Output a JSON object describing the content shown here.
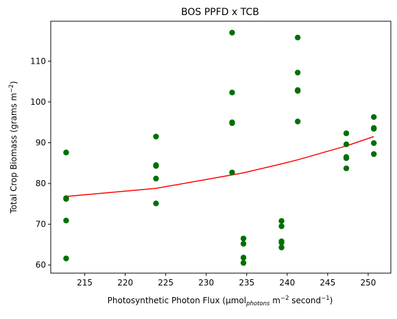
{
  "chart_data": {
    "type": "scatter",
    "title": "BOS PPFD x TCB",
    "xlabel": {
      "prefix": "Photosynthetic Photon Flux (μmol",
      "sub": "photons",
      "mid": " m",
      "sup1": "−2",
      "mid2": " second",
      "sup2": "−1",
      "suffix": ")"
    },
    "ylabel": {
      "prefix": "Total Crop Biomass (grams m",
      "sup": "−2",
      "suffix": ")"
    },
    "xlim": [
      210.8,
      252.8
    ],
    "ylim": [
      58.0,
      119.8
    ],
    "xticks": [
      215,
      220,
      225,
      230,
      235,
      240,
      245,
      250
    ],
    "yticks": [
      60,
      70,
      80,
      90,
      100,
      110
    ],
    "grid": false,
    "colors": {
      "points": "#007000",
      "trend": "#ff0000"
    },
    "series": [
      {
        "kind": "points",
        "x": [
          212.7,
          212.7,
          212.7,
          212.7,
          212.7,
          223.8,
          223.8,
          223.8,
          223.8,
          223.8,
          233.2,
          233.2,
          233.2,
          233.2,
          233.2,
          234.6,
          234.6,
          234.6,
          234.6,
          239.3,
          239.3,
          239.3,
          239.3,
          239.3,
          241.3,
          241.3,
          241.3,
          241.3,
          241.3,
          247.3,
          247.3,
          247.3,
          247.3,
          247.3,
          250.7,
          250.7,
          250.7,
          250.7,
          250.7
        ],
        "y": [
          87.6,
          76.4,
          76.2,
          70.9,
          61.6,
          91.5,
          84.5,
          84.3,
          81.2,
          75.1,
          117.0,
          102.3,
          95.0,
          94.8,
          82.7,
          66.5,
          65.2,
          61.8,
          60.5,
          70.8,
          69.5,
          65.8,
          65.5,
          64.3,
          115.8,
          107.2,
          102.9,
          102.7,
          95.2,
          92.3,
          89.6,
          86.5,
          86.2,
          83.7,
          96.3,
          93.6,
          93.4,
          89.9,
          87.2
        ]
      },
      {
        "kind": "line",
        "x": [
          212.7,
          223.8,
          233.2,
          234.6,
          239.3,
          241.3,
          247.3,
          250.7
        ],
        "y": [
          76.8,
          78.8,
          82.1,
          82.6,
          84.8,
          85.8,
          89.2,
          91.5
        ]
      }
    ]
  }
}
